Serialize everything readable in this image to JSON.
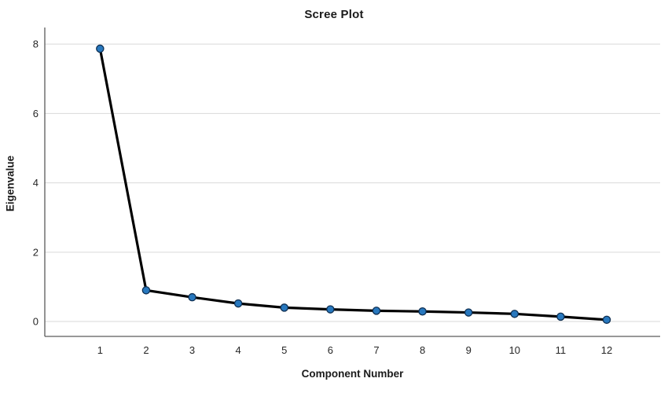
{
  "chart_data": {
    "type": "line",
    "title": "Scree Plot",
    "xlabel": "Component Number",
    "ylabel": "Eigenvalue",
    "x": [
      1,
      2,
      3,
      4,
      5,
      6,
      7,
      8,
      9,
      10,
      11,
      12
    ],
    "values": [
      7.87,
      0.9,
      0.7,
      0.52,
      0.4,
      0.35,
      0.31,
      0.29,
      0.26,
      0.22,
      0.14,
      0.05
    ],
    "xticklabels": [
      "1",
      "2",
      "3",
      "4",
      "5",
      "6",
      "7",
      "8",
      "9",
      "10",
      "11",
      "12"
    ],
    "yticks": [
      0,
      2,
      4,
      6,
      8
    ],
    "yticklabels": [
      "0",
      "2",
      "4",
      "6",
      "8"
    ],
    "xlim": [
      -0.2,
      13.16
    ],
    "ylim": [
      -0.43,
      8.48
    ],
    "grid": "horizontal-only",
    "legend": "none",
    "colors": {
      "line": "#000000",
      "marker_fill": "#2878BE",
      "marker_stroke": "#0E2F52",
      "gridline": "#D9D9D9",
      "axis_line": "#5A5A5A",
      "tick_text": "#262626",
      "background": "#FFFFFF"
    }
  }
}
